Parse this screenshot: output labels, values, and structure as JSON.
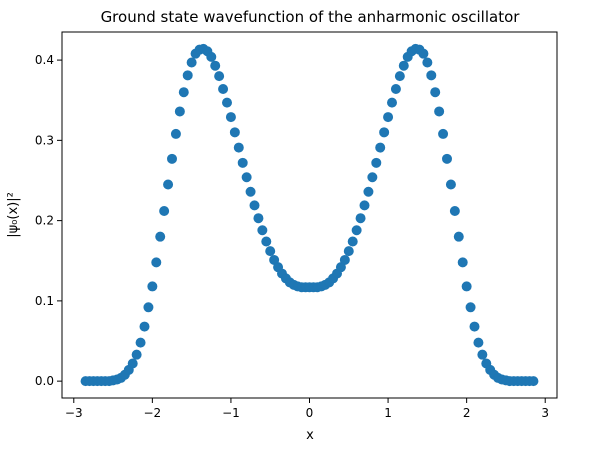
{
  "chart_data": {
    "type": "scatter",
    "title": "Ground state wavefunction of the anharmonic oscillator",
    "xlabel": "x",
    "ylabel": "|ψ₀(x)|²",
    "xlim": [
      -3.15,
      3.15
    ],
    "ylim": [
      -0.021,
      0.435
    ],
    "grid": false,
    "legend": "none",
    "marker_color": "#1f77b4",
    "x_ticks": [
      -3,
      -2,
      -1,
      0,
      1,
      2,
      3
    ],
    "x_tick_labels": [
      "−3",
      "−2",
      "−1",
      "0",
      "1",
      "2",
      "3"
    ],
    "y_ticks": [
      0.0,
      0.1,
      0.2,
      0.3,
      0.4
    ],
    "y_tick_labels": [
      "0.0",
      "0.1",
      "0.2",
      "0.3",
      "0.4"
    ],
    "series": [
      {
        "x": [
          -2.85,
          -2.8,
          -2.75,
          -2.7,
          -2.65,
          -2.6,
          -2.55,
          -2.5,
          -2.45,
          -2.4,
          -2.35,
          -2.3,
          -2.25,
          -2.2,
          -2.15,
          -2.1,
          -2.05,
          -2.0,
          -1.95,
          -1.9,
          -1.85,
          -1.8,
          -1.75,
          -1.7,
          -1.65,
          -1.6,
          -1.55,
          -1.5,
          -1.45,
          -1.4,
          -1.35,
          -1.3,
          -1.25,
          -1.2,
          -1.15,
          -1.1,
          -1.05,
          -1.0,
          -0.95,
          -0.9,
          -0.85,
          -0.8,
          -0.75,
          -0.7,
          -0.65,
          -0.6,
          -0.55,
          -0.5,
          -0.45,
          -0.4,
          -0.35,
          -0.3,
          -0.25,
          -0.2,
          -0.15,
          -0.1,
          -0.05,
          0.0,
          0.05,
          0.1,
          0.15,
          0.2,
          0.25,
          0.3,
          0.35,
          0.4,
          0.45,
          0.5,
          0.55,
          0.6,
          0.65,
          0.7,
          0.75,
          0.8,
          0.85,
          0.9,
          0.95,
          1.0,
          1.05,
          1.1,
          1.15,
          1.2,
          1.25,
          1.3,
          1.35,
          1.4,
          1.45,
          1.5,
          1.55,
          1.6,
          1.65,
          1.7,
          1.75,
          1.8,
          1.85,
          1.9,
          1.95,
          2.0,
          2.05,
          2.1,
          2.15,
          2.2,
          2.25,
          2.3,
          2.35,
          2.4,
          2.45,
          2.5,
          2.55,
          2.6,
          2.65,
          2.7,
          2.75,
          2.8,
          2.85
        ],
        "y": [
          0.0,
          0.0,
          0.0,
          0.0,
          0.0,
          0.0,
          0.0,
          0.001,
          0.002,
          0.004,
          0.008,
          0.014,
          0.022,
          0.033,
          0.048,
          0.068,
          0.092,
          0.118,
          0.148,
          0.18,
          0.212,
          0.245,
          0.277,
          0.308,
          0.336,
          0.36,
          0.381,
          0.397,
          0.408,
          0.413,
          0.414,
          0.411,
          0.404,
          0.393,
          0.38,
          0.364,
          0.347,
          0.329,
          0.31,
          0.291,
          0.272,
          0.254,
          0.236,
          0.219,
          0.203,
          0.188,
          0.174,
          0.162,
          0.151,
          0.142,
          0.134,
          0.128,
          0.123,
          0.12,
          0.118,
          0.117,
          0.117,
          0.117,
          0.117,
          0.117,
          0.118,
          0.12,
          0.123,
          0.128,
          0.134,
          0.142,
          0.151,
          0.162,
          0.174,
          0.188,
          0.203,
          0.219,
          0.236,
          0.254,
          0.272,
          0.291,
          0.31,
          0.329,
          0.347,
          0.364,
          0.38,
          0.393,
          0.404,
          0.411,
          0.414,
          0.413,
          0.408,
          0.397,
          0.381,
          0.36,
          0.336,
          0.308,
          0.277,
          0.245,
          0.212,
          0.18,
          0.148,
          0.118,
          0.092,
          0.068,
          0.048,
          0.033,
          0.022,
          0.014,
          0.008,
          0.004,
          0.002,
          0.001,
          0.0,
          0.0,
          0.0,
          0.0,
          0.0,
          0.0,
          0.0
        ]
      }
    ]
  }
}
